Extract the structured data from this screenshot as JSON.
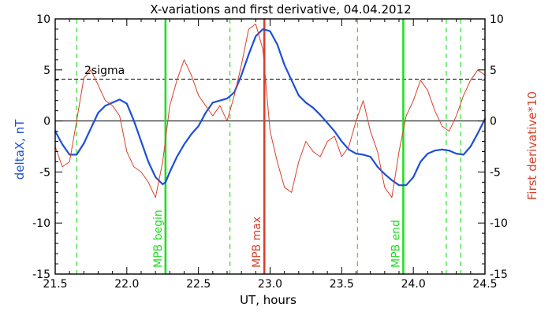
{
  "chart_data": {
    "type": "line",
    "title": "X-variations and first derivative, 04.04.2012",
    "xlabel": "UT, hours",
    "ylabel_left": "deltaX, nT",
    "ylabel_right": "First derivative*10",
    "xlim": [
      21.5,
      24.5
    ],
    "ylim": [
      -15,
      10
    ],
    "xticks": [
      "21.5",
      "22.0",
      "22.5",
      "23.0",
      "23.5",
      "24.0",
      "24.5"
    ],
    "yticks_left": [
      "-15",
      "-10",
      "-5",
      "0",
      "5",
      "10"
    ],
    "yticks_right": [
      "-15",
      "-10",
      "-5",
      "0",
      "5",
      "10"
    ],
    "colors": {
      "deltaX": "#1f4fd6",
      "derivative": "#d8402a",
      "mpb": "#22dd22",
      "mpb_max": "#d8402a",
      "axis": "#000000"
    },
    "threshold": {
      "label": "2sigma",
      "value": 4.1
    },
    "vlines": [
      {
        "label": "MPB begin",
        "x": 22.27,
        "style": "solid",
        "color": "#22dd22"
      },
      {
        "label": "MPB max",
        "x": 22.96,
        "style": "solid",
        "color": "#d8402a"
      },
      {
        "label": "MPB end",
        "x": 23.93,
        "style": "solid",
        "color": "#22dd22"
      },
      {
        "label": "",
        "x": 21.65,
        "style": "dashed",
        "color": "#22dd22"
      },
      {
        "label": "",
        "x": 22.72,
        "style": "dashed",
        "color": "#22dd22"
      },
      {
        "label": "",
        "x": 23.61,
        "style": "dashed",
        "color": "#22dd22"
      },
      {
        "label": "",
        "x": 24.23,
        "style": "dashed",
        "color": "#22dd22"
      },
      {
        "label": "",
        "x": 24.33,
        "style": "dashed",
        "color": "#22dd22"
      }
    ],
    "series": [
      {
        "axis": "left",
        "color": "#1f4fd6",
        "x": [
          21.5,
          21.55,
          21.6,
          21.65,
          21.7,
          21.75,
          21.8,
          21.85,
          21.9,
          21.95,
          22.0,
          22.05,
          22.1,
          22.15,
          22.2,
          22.25,
          22.27,
          22.3,
          22.35,
          22.4,
          22.45,
          22.5,
          22.55,
          22.6,
          22.65,
          22.7,
          22.75,
          22.8,
          22.85,
          22.9,
          22.95,
          23.0,
          23.05,
          23.1,
          23.15,
          23.2,
          23.25,
          23.3,
          23.35,
          23.4,
          23.45,
          23.5,
          23.55,
          23.6,
          23.65,
          23.7,
          23.75,
          23.8,
          23.85,
          23.9,
          23.95,
          24.0,
          24.05,
          24.1,
          24.15,
          24.2,
          24.25,
          24.3,
          24.35,
          24.4,
          24.45,
          24.5
        ],
        "values": [
          -1.0,
          -2.3,
          -3.3,
          -3.3,
          -2.2,
          -0.7,
          0.8,
          1.5,
          1.8,
          2.1,
          1.7,
          0.0,
          -2.0,
          -4.0,
          -5.5,
          -6.2,
          -6.0,
          -5.0,
          -3.5,
          -2.3,
          -1.3,
          -0.5,
          0.8,
          1.8,
          2.0,
          2.2,
          2.8,
          4.5,
          6.5,
          8.3,
          9.0,
          8.8,
          7.5,
          5.5,
          4.0,
          2.5,
          1.8,
          1.3,
          0.6,
          -0.2,
          -1.0,
          -2.0,
          -2.8,
          -3.2,
          -3.3,
          -3.5,
          -4.5,
          -5.2,
          -5.8,
          -6.3,
          -6.3,
          -5.5,
          -4.0,
          -3.2,
          -2.9,
          -2.8,
          -2.9,
          -3.2,
          -3.3,
          -2.5,
          -1.2,
          0.2
        ]
      },
      {
        "axis": "right",
        "color": "#d8402a",
        "x": [
          21.5,
          21.55,
          21.6,
          21.65,
          21.7,
          21.75,
          21.8,
          21.85,
          21.9,
          21.95,
          22.0,
          22.05,
          22.1,
          22.15,
          22.2,
          22.25,
          22.3,
          22.35,
          22.4,
          22.45,
          22.5,
          22.55,
          22.6,
          22.65,
          22.7,
          22.75,
          22.8,
          22.85,
          22.9,
          22.95,
          23.0,
          23.05,
          23.1,
          23.15,
          23.2,
          23.25,
          23.3,
          23.35,
          23.4,
          23.45,
          23.5,
          23.55,
          23.6,
          23.65,
          23.7,
          23.75,
          23.8,
          23.85,
          23.9,
          23.95,
          24.0,
          24.05,
          24.1,
          24.15,
          24.2,
          24.25,
          24.3,
          24.35,
          24.4,
          24.45,
          24.5
        ],
        "values": [
          -2.5,
          -4.5,
          -4.0,
          0.0,
          4.2,
          5.0,
          3.5,
          2.0,
          1.5,
          0.5,
          -3.0,
          -4.5,
          -5.0,
          -6.0,
          -7.5,
          -4.0,
          1.5,
          4.0,
          6.0,
          4.5,
          2.5,
          1.5,
          0.5,
          1.5,
          0.0,
          2.5,
          5.5,
          9.0,
          9.5,
          7.0,
          -1.0,
          -4.0,
          -6.5,
          -7.0,
          -4.0,
          -2.0,
          -3.0,
          -3.5,
          -2.0,
          -1.5,
          -3.5,
          -2.5,
          0.0,
          2.0,
          -1.0,
          -3.0,
          -6.5,
          -7.5,
          -3.0,
          0.5,
          2.0,
          4.0,
          3.0,
          1.0,
          -0.5,
          -1.0,
          0.5,
          2.5,
          4.0,
          5.0,
          4.5
        ]
      }
    ]
  }
}
